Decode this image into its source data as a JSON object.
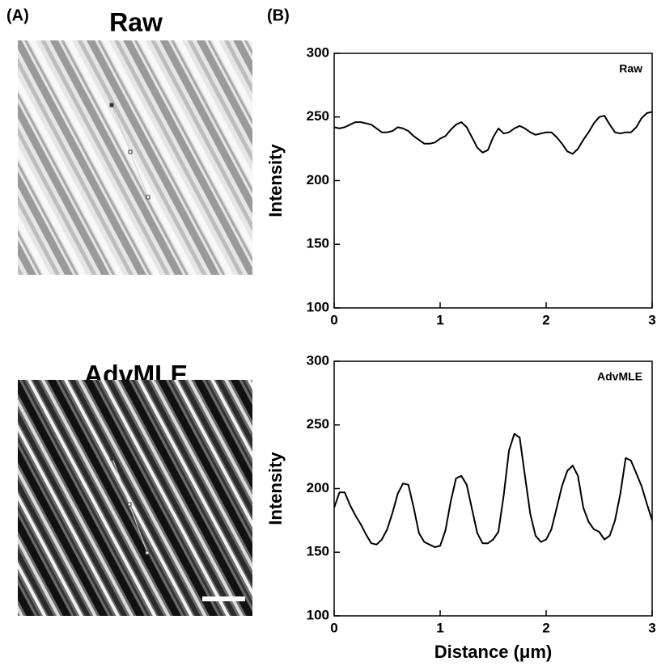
{
  "panel_labels": [
    "(A)",
    "(B)"
  ],
  "images": [
    {
      "title": "Raw"
    },
    {
      "title": "AdvMLE"
    }
  ],
  "chart_data": [
    {
      "type": "line",
      "title": "Raw",
      "y_label": "Intensity",
      "color": "#000000",
      "xlim": [
        0,
        3
      ],
      "xticks": [
        0,
        1,
        2,
        3
      ],
      "ylim": [
        100,
        300
      ],
      "yticks": [
        100,
        150,
        200,
        250,
        300
      ],
      "x": [
        0,
        0.05,
        0.1,
        0.15,
        0.2,
        0.25,
        0.3,
        0.35,
        0.4,
        0.45,
        0.5,
        0.55,
        0.6,
        0.65,
        0.7,
        0.75,
        0.8,
        0.85,
        0.9,
        0.95,
        1,
        1.05,
        1.1,
        1.15,
        1.2,
        1.25,
        1.3,
        1.35,
        1.4,
        1.45,
        1.5,
        1.55,
        1.6,
        1.65,
        1.7,
        1.75,
        1.8,
        1.85,
        1.9,
        1.95,
        2,
        2.05,
        2.1,
        2.15,
        2.2,
        2.25,
        2.3,
        2.35,
        2.4,
        2.45,
        2.5,
        2.55,
        2.6,
        2.65,
        2.7,
        2.75,
        2.8,
        2.85,
        2.9,
        2.95,
        3
      ],
      "values": [
        242,
        241,
        242,
        244,
        246,
        246,
        245,
        244,
        241,
        238,
        238,
        239,
        242,
        241,
        239,
        235,
        232,
        229,
        229,
        230,
        233,
        235,
        240,
        244,
        246,
        242,
        234,
        226,
        222,
        224,
        234,
        241,
        237,
        238,
        241,
        243,
        241,
        238,
        236,
        237,
        238,
        238,
        234,
        229,
        223,
        221,
        225,
        232,
        238,
        245,
        250,
        251,
        244,
        238,
        237,
        238,
        238,
        242,
        249,
        253,
        254
      ]
    },
    {
      "type": "line",
      "title": "AdvMLE",
      "y_label": "Intensity",
      "x_label": "Distance (μm)",
      "color": "#000000",
      "xlim": [
        0,
        3
      ],
      "xticks": [
        0,
        1,
        2,
        3
      ],
      "ylim": [
        100,
        300
      ],
      "yticks": [
        100,
        150,
        200,
        250,
        300
      ],
      "x": [
        0,
        0.05,
        0.1,
        0.15,
        0.2,
        0.25,
        0.3,
        0.35,
        0.4,
        0.45,
        0.5,
        0.55,
        0.6,
        0.65,
        0.7,
        0.75,
        0.8,
        0.85,
        0.9,
        0.95,
        1,
        1.05,
        1.1,
        1.15,
        1.2,
        1.25,
        1.3,
        1.35,
        1.4,
        1.45,
        1.5,
        1.55,
        1.6,
        1.65,
        1.7,
        1.75,
        1.8,
        1.85,
        1.9,
        1.95,
        2,
        2.05,
        2.1,
        2.15,
        2.2,
        2.25,
        2.3,
        2.35,
        2.4,
        2.45,
        2.5,
        2.55,
        2.6,
        2.65,
        2.7,
        2.75,
        2.8,
        2.85,
        2.9,
        2.95,
        3
      ],
      "values": [
        185,
        197,
        197,
        187,
        179,
        172,
        164,
        157,
        156,
        160,
        168,
        181,
        196,
        204,
        203,
        185,
        165,
        158,
        156,
        154,
        155,
        167,
        190,
        208,
        210,
        203,
        184,
        165,
        157,
        157,
        160,
        166,
        195,
        230,
        243,
        240,
        210,
        180,
        163,
        158,
        160,
        168,
        185,
        202,
        214,
        218,
        210,
        185,
        174,
        168,
        166,
        160,
        163,
        175,
        196,
        224,
        222,
        212,
        202,
        188,
        175
      ]
    }
  ]
}
